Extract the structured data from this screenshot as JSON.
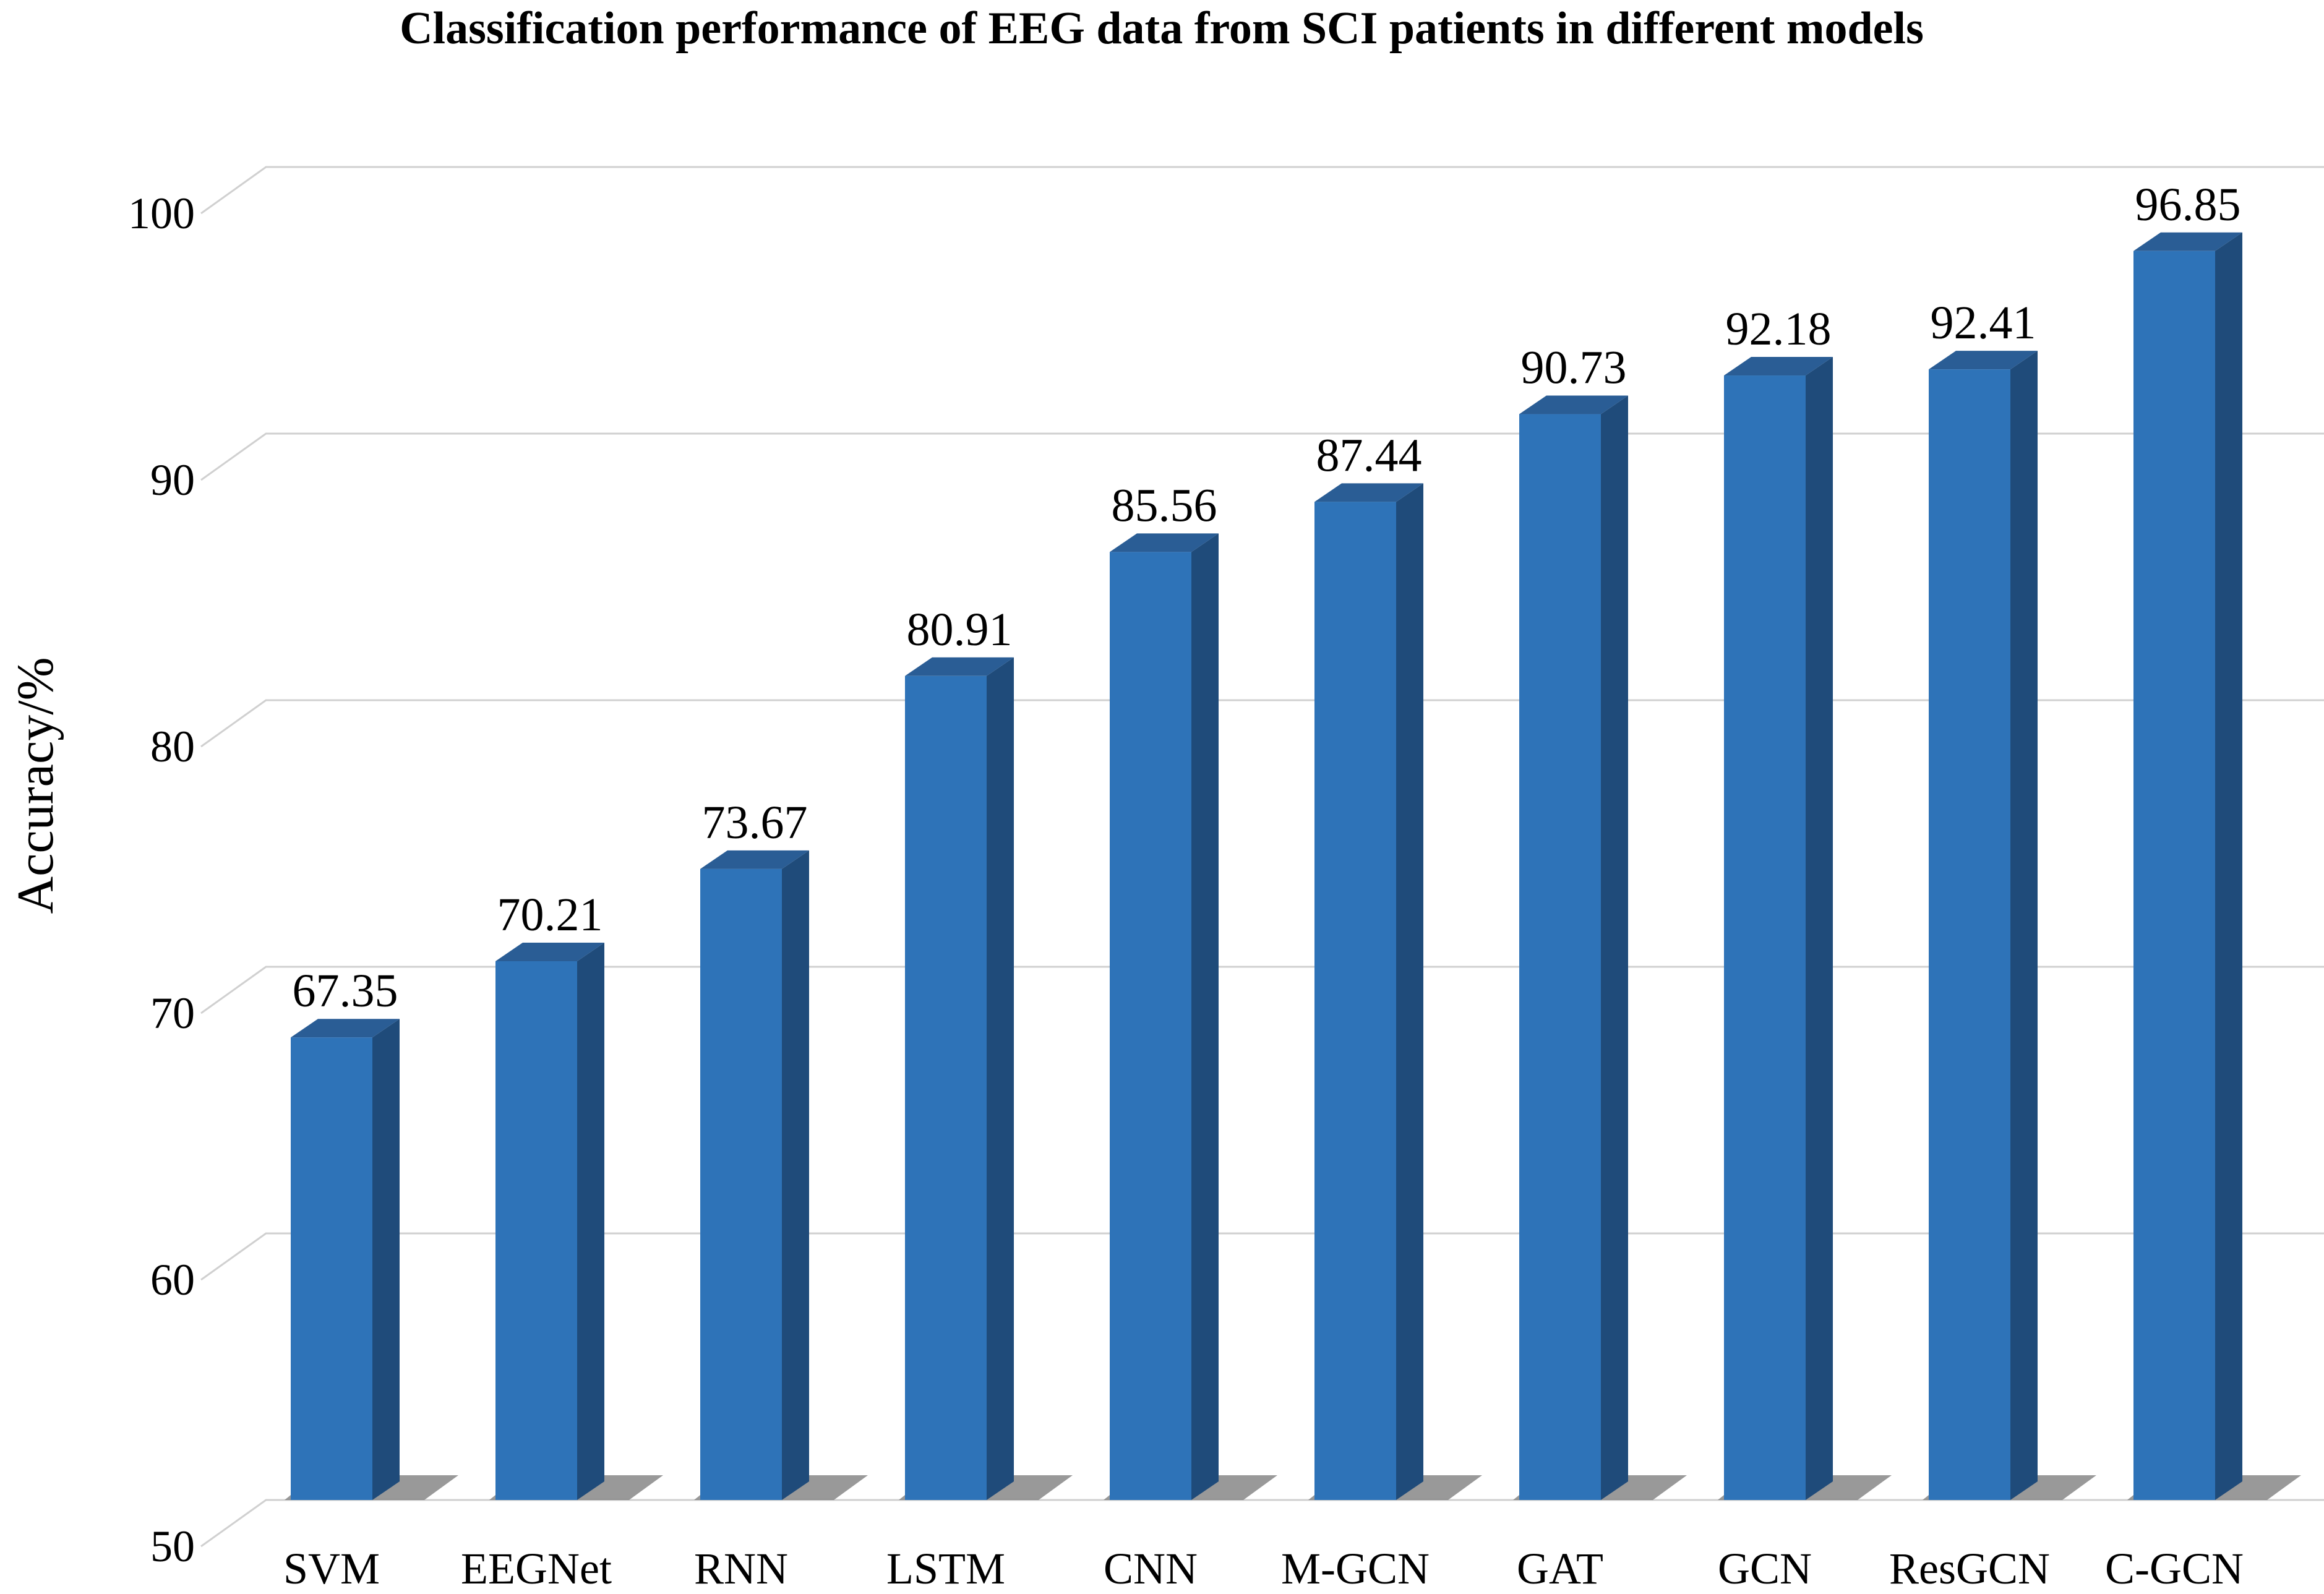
{
  "chart_data": {
    "type": "bar",
    "title": "Classification performance of EEG data from SCI patients in different models",
    "xlabel": "",
    "ylabel": "Accuracy/%",
    "ylim": [
      50,
      100
    ],
    "yticks": [
      50,
      60,
      70,
      80,
      90,
      100
    ],
    "grid": true,
    "style": "3d-column",
    "categories": [
      "SVM",
      "EEGNet",
      "RNN",
      "LSTM",
      "CNN",
      "M-GCN",
      "GAT",
      "GCN",
      "ResGCN",
      "C-GCN"
    ],
    "values": [
      67.35,
      70.21,
      73.67,
      80.91,
      85.56,
      87.44,
      90.73,
      92.18,
      92.41,
      96.85
    ],
    "data_labels": [
      "67.35",
      "70.21",
      "73.67",
      "80.91",
      "85.56",
      "87.44",
      "90.73",
      "92.18",
      "92.41",
      "96.85"
    ],
    "colors": {
      "front": "#2e73b8",
      "side": "#1f4b7a",
      "top": "#2a5d95",
      "shadow": "#777777"
    }
  }
}
